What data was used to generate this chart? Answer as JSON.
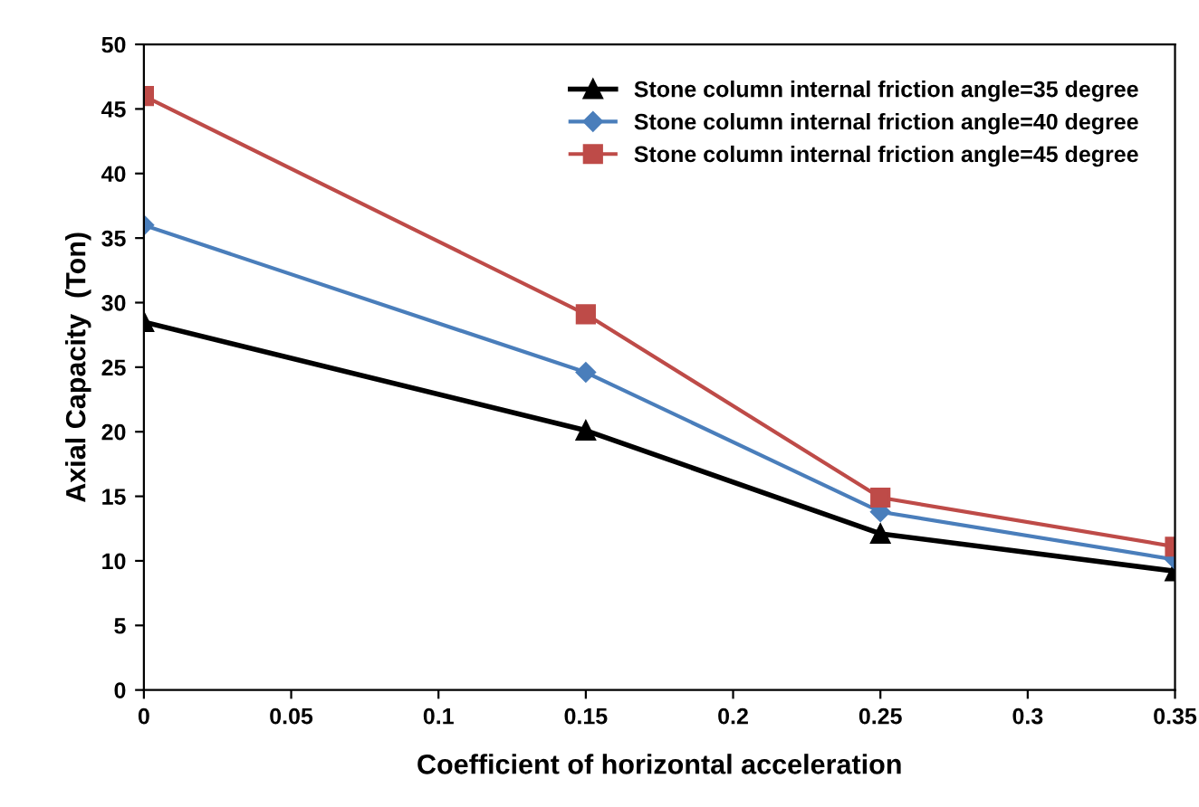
{
  "chart_data": {
    "type": "line",
    "xlabel": "Coefficient of horizontal acceleration",
    "ylabel": "Axial Capacity  (Ton)",
    "x": [
      0,
      0.15,
      0.25,
      0.35
    ],
    "series": [
      {
        "name": "Stone column internal friction angle=35 degree",
        "color": "#000000",
        "marker": "triangle",
        "values": [
          28.5,
          20.1,
          12.1,
          9.2
        ]
      },
      {
        "name": "Stone column internal friction angle=40 degree",
        "color": "#4a7ebb",
        "marker": "diamond",
        "values": [
          36.0,
          24.6,
          13.8,
          10.1
        ]
      },
      {
        "name": "Stone column internal friction angle=45 degree",
        "color": "#be4b48",
        "marker": "square",
        "values": [
          46.0,
          29.1,
          14.9,
          11.1
        ]
      }
    ],
    "xlim": [
      0,
      0.35
    ],
    "xticks": [
      0,
      0.05,
      0.1,
      0.15,
      0.2,
      0.25,
      0.3,
      0.35
    ],
    "ylim": [
      0,
      50
    ],
    "yticks": [
      0,
      5,
      10,
      15,
      20,
      25,
      30,
      35,
      40,
      45,
      50
    ],
    "grid": false,
    "legend": "top right",
    "line_style": "solid"
  }
}
